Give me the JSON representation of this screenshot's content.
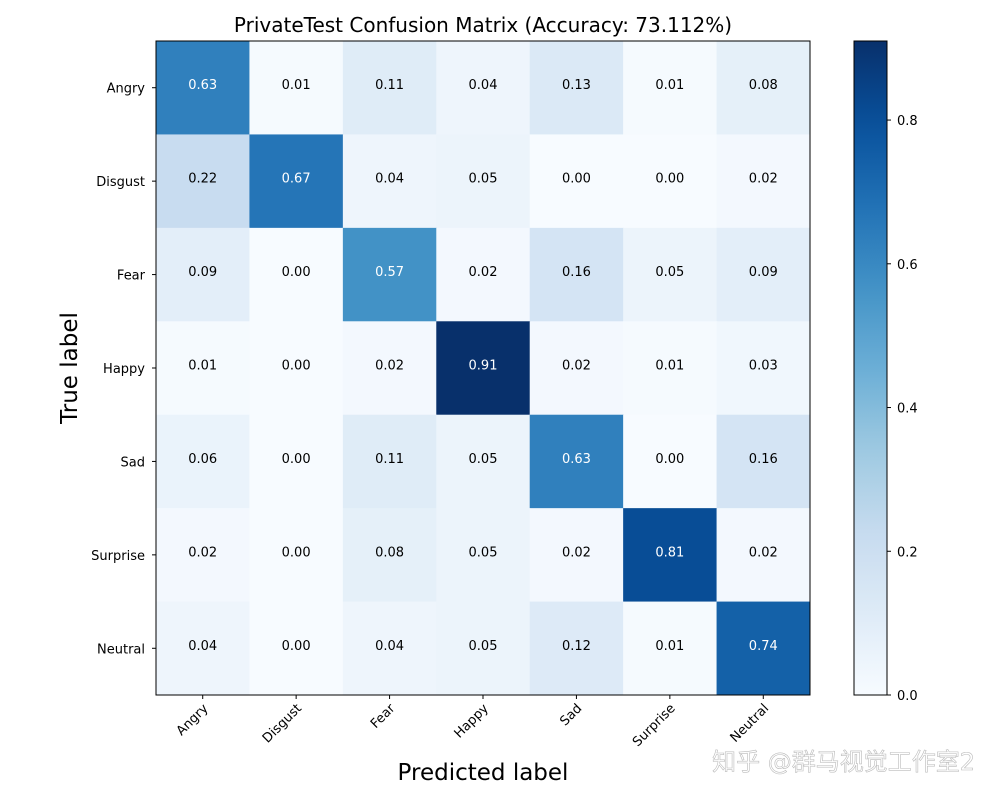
{
  "chart_data": {
    "type": "heatmap",
    "title": "PrivateTest Confusion Matrix (Accuracy: 73.112%)",
    "xlabel": "Predicted label",
    "ylabel": "True label",
    "x_categories": [
      "Angry",
      "Disgust",
      "Fear",
      "Happy",
      "Sad",
      "Surprise",
      "Neutral"
    ],
    "y_categories": [
      "Angry",
      "Disgust",
      "Fear",
      "Happy",
      "Sad",
      "Surprise",
      "Neutral"
    ],
    "values": [
      [
        0.63,
        0.01,
        0.11,
        0.04,
        0.13,
        0.01,
        0.08
      ],
      [
        0.22,
        0.67,
        0.04,
        0.05,
        0.0,
        0.0,
        0.02
      ],
      [
        0.09,
        0.0,
        0.57,
        0.02,
        0.16,
        0.05,
        0.09
      ],
      [
        0.01,
        0.0,
        0.02,
        0.91,
        0.02,
        0.01,
        0.03
      ],
      [
        0.06,
        0.0,
        0.11,
        0.05,
        0.63,
        0.0,
        0.16
      ],
      [
        0.02,
        0.0,
        0.08,
        0.05,
        0.02,
        0.81,
        0.02
      ],
      [
        0.04,
        0.0,
        0.04,
        0.05,
        0.12,
        0.01,
        0.74
      ]
    ],
    "colormap": "Blues",
    "colorbar": {
      "range": [
        0,
        0.91
      ],
      "ticks": [
        0.0,
        0.2,
        0.4,
        0.6,
        0.8
      ],
      "tick_labels": [
        "0.0",
        "0.2",
        "0.4",
        "0.6",
        "0.8"
      ]
    },
    "grid": false
  },
  "watermark": "知乎 @群马视觉工作室2"
}
